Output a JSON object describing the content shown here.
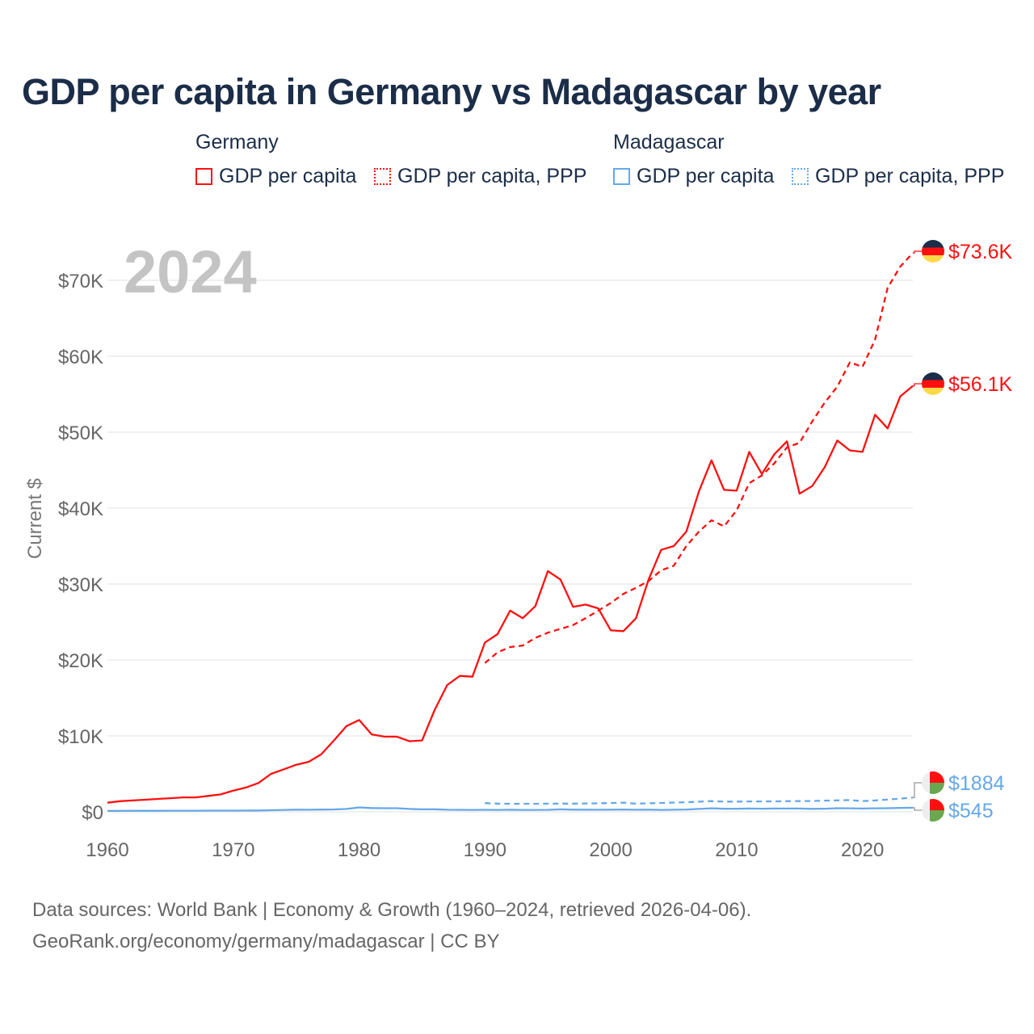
{
  "title": "GDP per capita in Germany vs Madagascar by year",
  "legend": {
    "groups": [
      {
        "name": "Germany",
        "items": [
          "GDP per capita",
          "GDP per capita, PPP"
        ]
      },
      {
        "name": "Madagascar",
        "items": [
          "GDP per capita",
          "GDP per capita, PPP"
        ]
      }
    ]
  },
  "year_overlay": "2024",
  "footer": {
    "line1": "Data sources: World Bank | Economy & Growth (1960–2024, retrieved 2026-04-06).",
    "line2": "GeoRank.org/economy/germany/madagascar | CC BY"
  },
  "colors": {
    "germany": "#ff1010",
    "madagascar": "#66a8e8"
  },
  "chart_data": {
    "type": "line",
    "title": "GDP per capita in Germany vs Madagascar by year",
    "xlabel": "",
    "ylabel": "Current $",
    "xlim": [
      1960,
      2024
    ],
    "ylim": [
      0,
      70000
    ],
    "xticks": [
      1960,
      1970,
      1980,
      1990,
      2000,
      2010,
      2020
    ],
    "xtick_labels": [
      "1960",
      "1970",
      "1980",
      "1990",
      "2000",
      "2010",
      "2020"
    ],
    "yticks": [
      0,
      10000,
      20000,
      30000,
      40000,
      50000,
      60000,
      70000
    ],
    "ytick_labels": [
      "$0",
      "$10K",
      "$20K",
      "$30K",
      "$40K",
      "$50K",
      "$60K",
      "$70K"
    ],
    "grid": true,
    "series": [
      {
        "name": "Germany GDP per capita",
        "country": "germany",
        "dash": false,
        "start": 1960,
        "end_label": "$56.1K",
        "values": [
          1200,
          1400,
          1500,
          1600,
          1700,
          1800,
          1900,
          1900,
          2100,
          2300,
          2800,
          3200,
          3800,
          5000,
          5600,
          6200,
          6600,
          7600,
          9400,
          11300,
          12100,
          10200,
          9900,
          9900,
          9300,
          9400,
          13400,
          16700,
          17900,
          17800,
          22300,
          23400,
          26500,
          25500,
          27100,
          31700,
          30600,
          27000,
          27300,
          26800,
          23900,
          23800,
          25500,
          30600,
          34500,
          35000,
          36900,
          42200,
          46300,
          42400,
          42300,
          47400,
          44500,
          47100,
          48800,
          41900,
          42900,
          45400,
          48900,
          47600,
          47400,
          52300,
          50500,
          54700,
          56100
        ]
      },
      {
        "name": "Germany GDP per capita, PPP",
        "country": "germany",
        "dash": true,
        "start": 1990,
        "end_label": "$73.6K",
        "values": [
          19600,
          21000,
          21700,
          21900,
          22900,
          23600,
          24100,
          24600,
          25500,
          26500,
          27500,
          28700,
          29500,
          30400,
          31800,
          32400,
          35000,
          36900,
          38400,
          37600,
          39700,
          43300,
          44300,
          45900,
          48000,
          48600,
          51400,
          53900,
          56000,
          59200,
          58600,
          62200,
          69000,
          71800,
          73600
        ]
      },
      {
        "name": "Madagascar GDP per capita",
        "country": "madagascar",
        "dash": false,
        "start": 1960,
        "end_label": "$545",
        "values": [
          130,
          130,
          135,
          140,
          140,
          145,
          150,
          150,
          155,
          160,
          160,
          170,
          180,
          210,
          250,
          290,
          280,
          300,
          320,
          380,
          580,
          500,
          480,
          480,
          380,
          330,
          340,
          280,
          270,
          250,
          270,
          260,
          280,
          260,
          250,
          270,
          330,
          290,
          290,
          280,
          290,
          300,
          280,
          290,
          250,
          280,
          310,
          380,
          470,
          400,
          400,
          440,
          420,
          440,
          440,
          440,
          390,
          410,
          480,
          470,
          440,
          470,
          480,
          520,
          545
        ]
      },
      {
        "name": "Madagascar GDP per capita, PPP",
        "country": "madagascar",
        "dash": true,
        "start": 1990,
        "end_label": "$1884",
        "values": [
          1150,
          1080,
          1060,
          1060,
          1060,
          1070,
          1080,
          1090,
          1110,
          1130,
          1160,
          1210,
          1070,
          1130,
          1170,
          1220,
          1270,
          1340,
          1420,
          1350,
          1350,
          1370,
          1370,
          1380,
          1400,
          1410,
          1430,
          1480,
          1510,
          1550,
          1410,
          1500,
          1620,
          1740,
          1884
        ]
      }
    ]
  }
}
